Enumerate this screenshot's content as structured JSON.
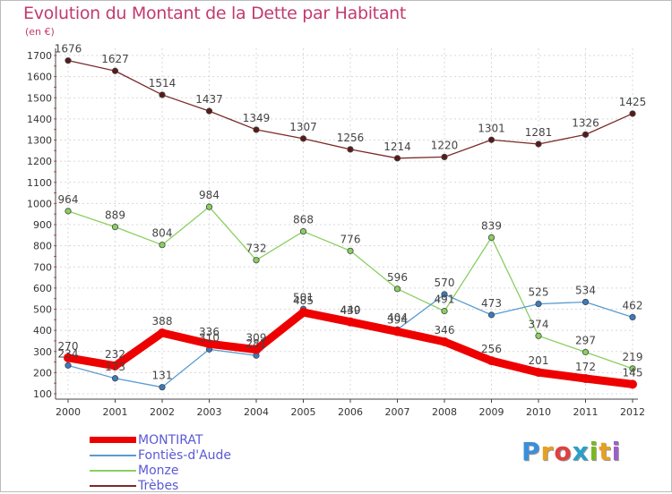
{
  "title": "Evolution du Montant de la Dette par Habitant",
  "subtitle": "(en €)",
  "brand": {
    "letters": [
      "P",
      "r",
      "o",
      "x",
      "i",
      "t",
      "i"
    ],
    "colors": [
      "#3a8fd9",
      "#e8a020",
      "#e04040",
      "#2aa0c8",
      "#7ab820",
      "#e8a020",
      "#9a60c8"
    ]
  },
  "chart_data": {
    "type": "line",
    "categories": [
      "2000",
      "2001",
      "2002",
      "2003",
      "2004",
      "2005",
      "2006",
      "2007",
      "2008",
      "2009",
      "2010",
      "2011",
      "2012"
    ],
    "ylim": [
      100,
      1700
    ],
    "yticks": [
      100,
      200,
      300,
      400,
      500,
      600,
      700,
      800,
      900,
      1000,
      1100,
      1200,
      1300,
      1400,
      1500,
      1600,
      1700
    ],
    "legend_position": "bottom-left",
    "series": [
      {
        "name": "Trèbes",
        "color": "#7a2a2a",
        "marker": "#5a1a1a",
        "labels": [
          "1676",
          "1627",
          "1514",
          "1437",
          "1349",
          "1307",
          "1256",
          "1214",
          "1220",
          "1301",
          "1281",
          "1326",
          "1425"
        ],
        "values": [
          1676,
          1627,
          1514,
          1437,
          1349,
          1307,
          1256,
          1214,
          1220,
          1301,
          1281,
          1326,
          1425
        ]
      },
      {
        "name": "Monze",
        "color": "#88d060",
        "marker": "#88d060",
        "labels": [
          "964",
          "889",
          "804",
          "984",
          "732",
          "868",
          "776",
          "596",
          "491",
          "839",
          "374",
          "297",
          "219"
        ],
        "values": [
          964,
          889,
          804,
          984,
          732,
          868,
          776,
          596,
          491,
          839,
          374,
          297,
          219
        ]
      },
      {
        "name": "Fontiès-d'Aude",
        "color": "#5a9bcf",
        "marker": "#3a7bc0",
        "labels": [
          "234",
          "173",
          "131",
          "310",
          "281",
          "501",
          "439",
          "404",
          "570",
          "473",
          "525",
          "534",
          "462"
        ],
        "values": [
          234,
          173,
          131,
          310,
          281,
          501,
          439,
          404,
          570,
          473,
          525,
          534,
          462
        ]
      },
      {
        "name": "MONTIRAT",
        "color": "#ee0000",
        "marker": "#ee0000",
        "labels": [
          "270",
          "232",
          "388",
          "336",
          "309",
          "485",
          "440",
          "394",
          "346",
          "256",
          "201",
          "172",
          "145"
        ],
        "values": [
          270,
          232,
          388,
          336,
          309,
          485,
          440,
          394,
          346,
          256,
          201,
          172,
          145
        ]
      }
    ]
  },
  "legend": [
    {
      "label": "MONTIRAT",
      "color": "#ee0000",
      "weight": "thick"
    },
    {
      "label": "Fontiès-d'Aude",
      "color": "#5a9bcf",
      "weight": "thin"
    },
    {
      "label": "Monze",
      "color": "#88d060",
      "weight": "thin"
    },
    {
      "label": "Trèbes",
      "color": "#7a2a2a",
      "weight": "thin"
    }
  ]
}
